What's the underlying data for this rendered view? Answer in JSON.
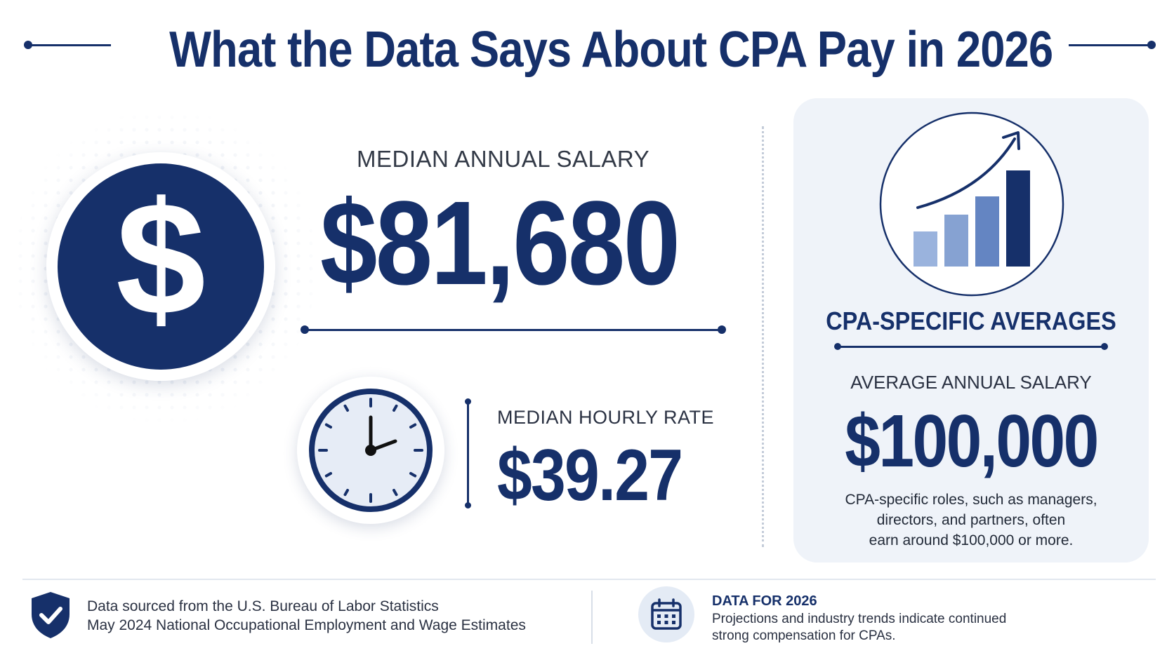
{
  "title": "What the Data Says About CPA Pay in 2026",
  "median_annual": {
    "label": "MEDIAN ANNUAL SALARY",
    "value": "$81,680",
    "icon": "dollar-icon"
  },
  "median_hourly": {
    "label": "MEDIAN HOURLY RATE",
    "value": "$39.27",
    "icon": "clock-icon"
  },
  "cpa_panel": {
    "heading": "CPA-SPECIFIC AVERAGES",
    "icon": "rising-bar-chart-icon",
    "avg_label": "AVERAGE ANNUAL SALARY",
    "avg_value": "$100,000",
    "desc_line1": "CPA-specific roles, such as managers,",
    "desc_line2": "directors, and partners, often",
    "desc_line3": "earn around $100,000 or more."
  },
  "footer": {
    "source_icon": "shield-check-icon",
    "source_line1": "Data sourced from the U.S. Bureau of Labor Statistics",
    "source_line2": "May 2024 National Occupational Employment and Wage Estimates",
    "calendar_icon": "calendar-icon",
    "data_heading": "DATA FOR 2026",
    "data_line1": "Projections and industry trends indicate continued",
    "data_line2": "strong compensation for CPAs."
  },
  "colors": {
    "navy": "#16306a",
    "panel_bg": "#eff3f9",
    "bar_light": "#8eaad8",
    "bar_mid": "#7a97cc",
    "bar_dark": "#5d7cba"
  }
}
